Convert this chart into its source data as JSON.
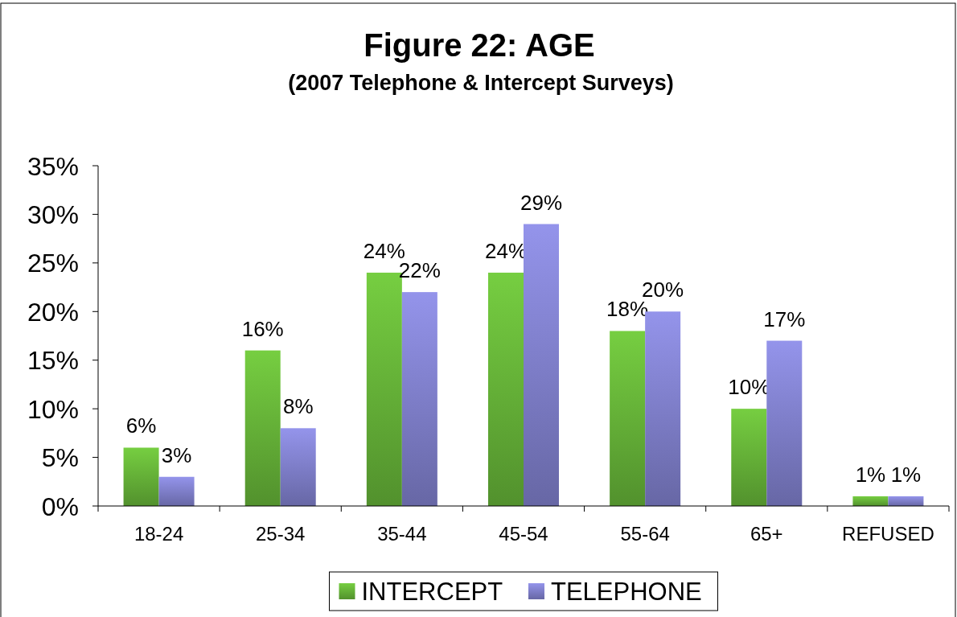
{
  "chart_data": {
    "type": "bar",
    "title": "Figure 22: AGE",
    "subtitle": "(2007 Telephone & Intercept Surveys)",
    "categories": [
      "18-24",
      "25-34",
      "35-44",
      "45-54",
      "55-64",
      "65+",
      "REFUSED"
    ],
    "series": [
      {
        "name": "INTERCEPT",
        "color": "#66b338",
        "values": [
          6,
          16,
          24,
          24,
          18,
          10,
          1
        ],
        "value_labels": [
          "6%",
          "16%",
          "24%",
          "24%",
          "18%",
          "10%",
          "1%"
        ]
      },
      {
        "name": "TELEPHONE",
        "color": "#8080cc",
        "values": [
          3,
          8,
          22,
          29,
          20,
          17,
          1
        ],
        "value_labels": [
          "3%",
          "8%",
          "22%",
          "29%",
          "20%",
          "17%",
          "1%"
        ]
      }
    ],
    "ylim": [
      0,
      35
    ],
    "yticks": [
      {
        "value": 0,
        "label": "0%"
      },
      {
        "value": 5,
        "label": "5%"
      },
      {
        "value": 10,
        "label": "10%"
      },
      {
        "value": 15,
        "label": "15%"
      },
      {
        "value": 20,
        "label": "20%"
      },
      {
        "value": 25,
        "label": "25%"
      },
      {
        "value": 30,
        "label": "30%"
      },
      {
        "value": 35,
        "label": "35%"
      }
    ],
    "legend": "bottom"
  }
}
